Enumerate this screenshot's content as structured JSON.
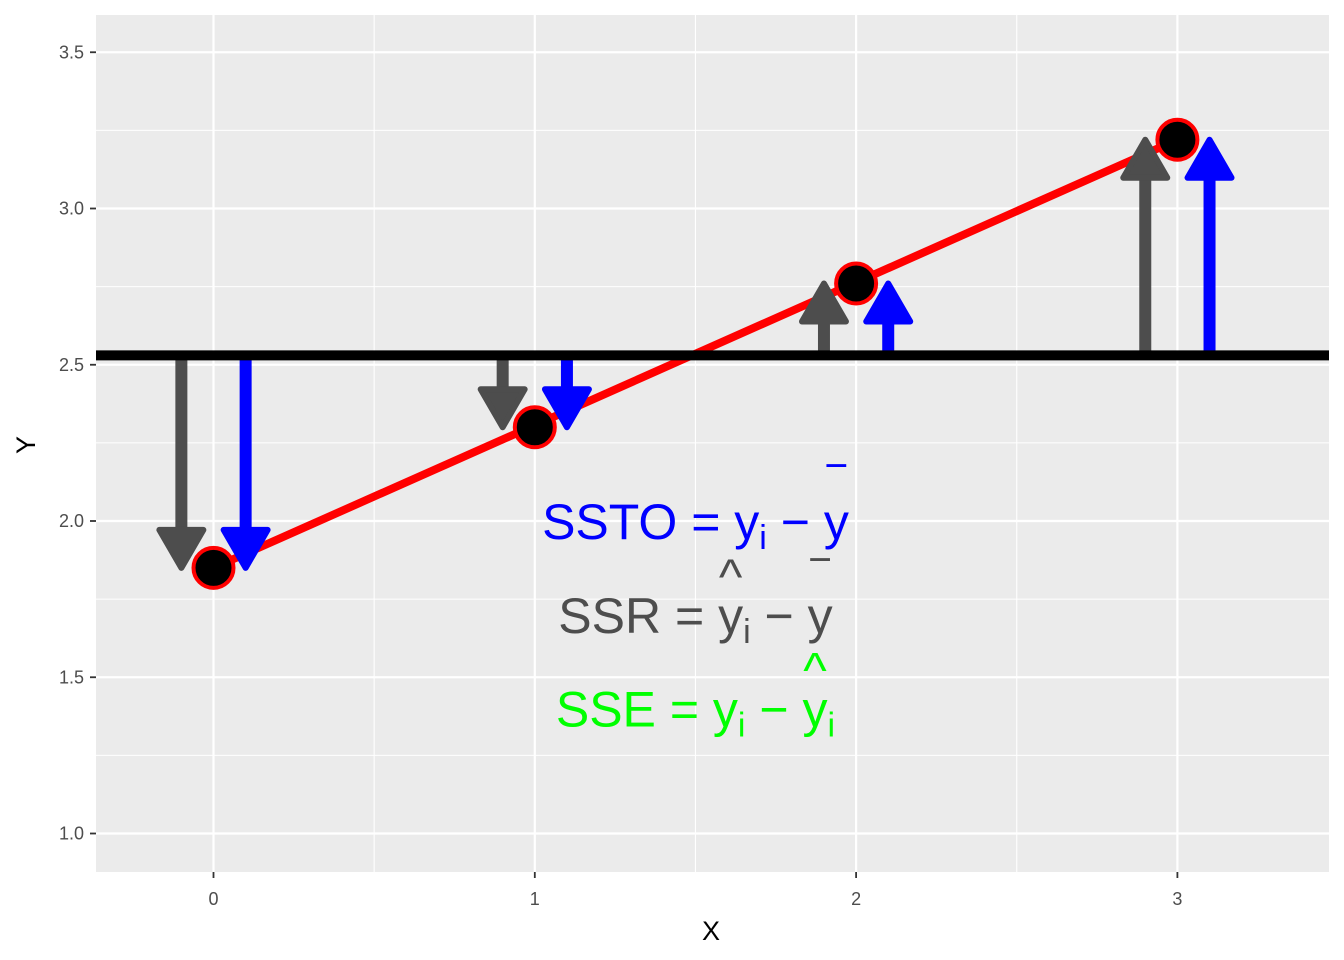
{
  "chart_data": {
    "type": "scatter",
    "xlabel": "X",
    "ylabel": "Y",
    "xlim": [
      -0.37,
      3.47
    ],
    "ylim": [
      0.875,
      3.625
    ],
    "x_ticks": [
      "0",
      "1",
      "2",
      "3"
    ],
    "y_ticks": [
      "1.0",
      "1.5",
      "2.0",
      "2.5",
      "3.0",
      "3.5"
    ],
    "x_tick_values": [
      0,
      1,
      2,
      3
    ],
    "y_tick_values": [
      1.0,
      1.5,
      2.0,
      2.5,
      3.0,
      3.5
    ],
    "x_minor_values": [
      0.5,
      1.5,
      2.5
    ],
    "y_minor_values": [
      1.25,
      1.75,
      2.25,
      2.75,
      3.25
    ],
    "grid": true,
    "background_color": "#ebebeb",
    "points": {
      "x": [
        0,
        1,
        2,
        3
      ],
      "y": [
        1.85,
        2.3,
        2.76,
        3.22
      ],
      "fill": "#000000",
      "stroke": "#ff0000"
    },
    "mean_line": {
      "y": 2.53,
      "color": "#000000"
    },
    "fit_line": {
      "x": [
        0,
        3
      ],
      "y": [
        1.85,
        3.22
      ],
      "color": "#ff0000"
    },
    "ssr_arrows": {
      "color": "#4d4d4d",
      "x": [
        -0.1,
        0.9,
        1.9,
        2.9
      ],
      "from_y": [
        2.53,
        2.53,
        2.53,
        2.53
      ],
      "to_y": [
        1.85,
        2.3,
        2.76,
        3.22
      ]
    },
    "ssto_arrows": {
      "color": "#0000ff",
      "x": [
        0.1,
        1.1,
        2.1,
        3.1
      ],
      "from_y": [
        2.53,
        2.53,
        2.53,
        2.53
      ],
      "to_y": [
        1.85,
        2.3,
        2.76,
        3.22
      ]
    },
    "annotations": [
      {
        "name": "ssto-formula",
        "color": "#0000ff",
        "x": 1.5,
        "y": 2.0,
        "lhs": "SSTO",
        "eq": "=",
        "y_sym": "y",
        "y_sub": "i",
        "minus": "−",
        "rhs": "y",
        "rhs_sub": "",
        "rhs_mark": "‾"
      },
      {
        "name": "ssr-formula",
        "color": "#4d4d4d",
        "x": 1.5,
        "y": 1.7,
        "lhs": "SSR",
        "eq": "=",
        "y_sym": "y",
        "y_sub": "i",
        "y_mark": "^",
        "minus": "−",
        "rhs": "y",
        "rhs_sub": "",
        "rhs_mark": "‾"
      },
      {
        "name": "sse-formula",
        "color": "#00ff00",
        "x": 1.5,
        "y": 1.4,
        "lhs": "SSE",
        "eq": "=",
        "y_sym": "y",
        "y_sub": "i",
        "minus": "−",
        "rhs": "y",
        "rhs_sub": "i",
        "rhs_mark": "^"
      }
    ]
  }
}
